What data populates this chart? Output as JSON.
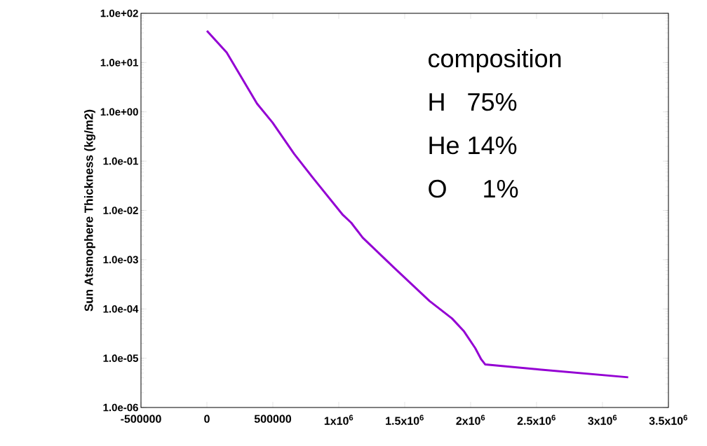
{
  "chart_data": {
    "type": "line",
    "ylabel": "Sun Atsmophere Thickness (kg/m2)",
    "log": "y",
    "grid": false,
    "line_style": "solid",
    "xlim": [
      -500000,
      3500000
    ],
    "ylim": [
      1e-06,
      100
    ],
    "xticks": [
      -500000,
      0,
      500000,
      {
        "value": 1000000,
        "label": "1x10$^{6}$"
      },
      {
        "value": 1500000,
        "label": "1.5x10$^{6}$"
      },
      {
        "value": 2000000,
        "label": "2x10$^{6}$"
      },
      {
        "value": 2500000,
        "label": "2.5x10$^{6}$"
      },
      {
        "value": 3000000,
        "label": "3x10$^{6}$"
      },
      {
        "value": 3500000,
        "label": "3.5x10$^{6}$"
      }
    ],
    "yticks": [
      {
        "value": 1e-06,
        "label": "1.0e-06"
      },
      {
        "value": 1e-05,
        "label": "1.0e-05"
      },
      {
        "value": 0.0001,
        "label": "1.0e-04"
      },
      {
        "value": 0.001,
        "label": "1.0e-03"
      },
      {
        "value": 0.01,
        "label": "1.0e-02"
      },
      {
        "value": 0.1,
        "label": "1.0e-01"
      },
      {
        "value": 1,
        "label": "1.0e+00"
      },
      {
        "value": 10,
        "label": "1.0e+01"
      },
      {
        "value": 100,
        "label": "1.0e+02"
      }
    ],
    "annotations": [
      "composition",
      "H   75%",
      "He 14%",
      "O     1%"
    ],
    "series": [
      {
        "color": "#9400d3",
        "x": [
          0,
          150000,
          380000,
          497000,
          662000,
          812000,
          1031000,
          1095000,
          1181000,
          1421000,
          1688000,
          1859000,
          1950000,
          2035000,
          2080000,
          2110000,
          2521000,
          3195000
        ],
        "values": [
          44,
          16,
          1.47,
          0.61,
          0.14,
          0.043,
          0.0081,
          0.0056,
          0.0028,
          0.00068,
          0.000145,
          6.4e-05,
          3.5e-05,
          1.6e-05,
          9.5e-06,
          7.5e-06,
          5.9e-06,
          4.1e-06
        ]
      }
    ]
  }
}
